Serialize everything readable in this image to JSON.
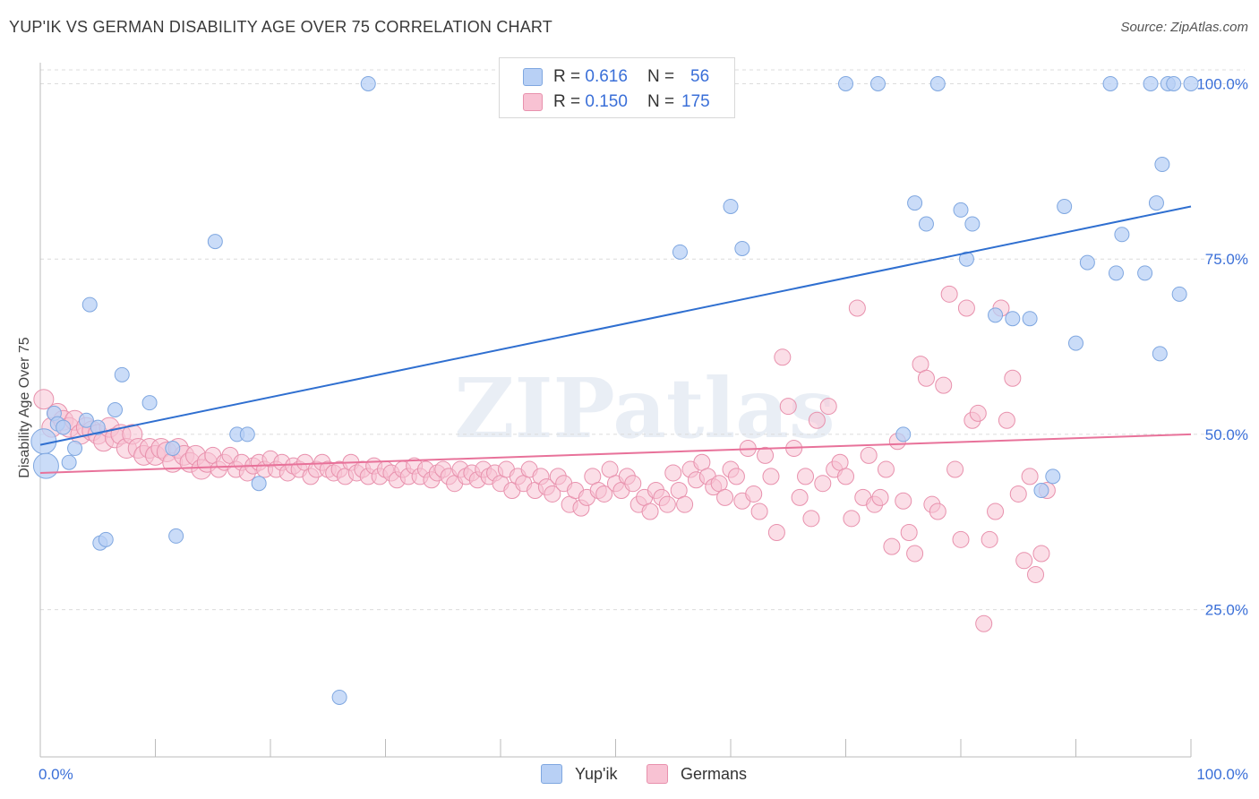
{
  "title": "YUP'IK VS GERMAN DISABILITY AGE OVER 75 CORRELATION CHART",
  "source": "Source: ZipAtlas.com",
  "watermark": "ZIPatlas",
  "legend": {
    "rows": [
      {
        "r_label": "R =",
        "r_value": "0.616",
        "n_label": "N =",
        "n_value": "56"
      },
      {
        "r_label": "R =",
        "r_value": "0.150",
        "n_label": "N =",
        "n_value": "175"
      }
    ]
  },
  "bottom_legend": [
    "Yup'ik",
    "Germans"
  ],
  "colors": {
    "blue_fill": "#b8d0f5",
    "blue_edge": "#7fa7e0",
    "blue_line": "#2f6fd0",
    "pink_fill": "#f8c2d3",
    "pink_edge": "#e891ad",
    "pink_line": "#e8729a",
    "tick_label": "#3a6fd8"
  },
  "chart_data": {
    "type": "scatter",
    "title": "YUP'IK VS GERMAN DISABILITY AGE OVER 75 CORRELATION CHART",
    "xlabel": "",
    "ylabel": "Disability Age Over 75",
    "xlim": [
      0,
      100
    ],
    "ylim": [
      4,
      103
    ],
    "x_tick_labels": [
      "0.0%",
      "100.0%"
    ],
    "y_ticks": [
      25,
      50,
      75,
      100
    ],
    "y_tick_labels": [
      "25.0%",
      "50.0%",
      "75.0%",
      "100.0%"
    ],
    "grid": "dashed horizontal at y ticks",
    "legend_position": "top-center",
    "series": [
      {
        "name": "Yup'ik",
        "R": 0.616,
        "N": 56,
        "trend": {
          "x": [
            0,
            100
          ],
          "y": [
            48.5,
            82.5
          ]
        },
        "points": [
          [
            0.3,
            49
          ],
          [
            0.5,
            45.5
          ],
          [
            1.2,
            53
          ],
          [
            1.5,
            51.5
          ],
          [
            2,
            51
          ],
          [
            2.5,
            46
          ],
          [
            3,
            48
          ],
          [
            4,
            52
          ],
          [
            4.3,
            68.5
          ],
          [
            5,
            51
          ],
          [
            5.2,
            34.5
          ],
          [
            5.7,
            35
          ],
          [
            6.5,
            53.5
          ],
          [
            7.1,
            58.5
          ],
          [
            9.5,
            54.5
          ],
          [
            11.5,
            48
          ],
          [
            11.8,
            35.5
          ],
          [
            15.2,
            77.5
          ],
          [
            17.1,
            50
          ],
          [
            18,
            50
          ],
          [
            19,
            43
          ],
          [
            26,
            12.5
          ],
          [
            28.5,
            100
          ],
          [
            54,
            100
          ],
          [
            55.6,
            76
          ],
          [
            60,
            82.5
          ],
          [
            61,
            76.5
          ],
          [
            70,
            100
          ],
          [
            72.8,
            100
          ],
          [
            75,
            50
          ],
          [
            76,
            83
          ],
          [
            77,
            80
          ],
          [
            78,
            100
          ],
          [
            80,
            82
          ],
          [
            80.5,
            75
          ],
          [
            81,
            80
          ],
          [
            83,
            67
          ],
          [
            84.5,
            66.5
          ],
          [
            86,
            66.5
          ],
          [
            87,
            42
          ],
          [
            88,
            44
          ],
          [
            89,
            82.5
          ],
          [
            90,
            63
          ],
          [
            91,
            74.5
          ],
          [
            93,
            100
          ],
          [
            93.5,
            73
          ],
          [
            94,
            78.5
          ],
          [
            96,
            73
          ],
          [
            96.5,
            100
          ],
          [
            97,
            83
          ],
          [
            97.5,
            88.5
          ],
          [
            97.3,
            61.5
          ],
          [
            98,
            100
          ],
          [
            98.5,
            100
          ],
          [
            99,
            70
          ],
          [
            100,
            100
          ]
        ]
      },
      {
        "name": "Germans",
        "R": 0.15,
        "N": 175,
        "trend": {
          "x": [
            0,
            100
          ],
          "y": [
            44.5,
            50
          ]
        },
        "points": [
          [
            0.3,
            55
          ],
          [
            1,
            51
          ],
          [
            1.5,
            53
          ],
          [
            2,
            52
          ],
          [
            2.5,
            51
          ],
          [
            3,
            52
          ],
          [
            3.5,
            50
          ],
          [
            4,
            51
          ],
          [
            4.5,
            50.5
          ],
          [
            5,
            50
          ],
          [
            5.5,
            49
          ],
          [
            6,
            51
          ],
          [
            6.5,
            49.5
          ],
          [
            7,
            50
          ],
          [
            7.5,
            48
          ],
          [
            8,
            50
          ],
          [
            8.5,
            48
          ],
          [
            9,
            47
          ],
          [
            9.5,
            48
          ],
          [
            10,
            47
          ],
          [
            10.5,
            48
          ],
          [
            11,
            47.5
          ],
          [
            11.5,
            46
          ],
          [
            12,
            48
          ],
          [
            12.5,
            47
          ],
          [
            13,
            46
          ],
          [
            13.5,
            47
          ],
          [
            14,
            45
          ],
          [
            14.5,
            46
          ],
          [
            15,
            47
          ],
          [
            15.5,
            45
          ],
          [
            16,
            46
          ],
          [
            16.5,
            47
          ],
          [
            17,
            45
          ],
          [
            17.5,
            46
          ],
          [
            18,
            44.5
          ],
          [
            18.5,
            45.5
          ],
          [
            19,
            46
          ],
          [
            19.5,
            45
          ],
          [
            20,
            46.5
          ],
          [
            20.5,
            45
          ],
          [
            21,
            46
          ],
          [
            21.5,
            44.5
          ],
          [
            22,
            45.5
          ],
          [
            22.5,
            45
          ],
          [
            23,
            46
          ],
          [
            23.5,
            44
          ],
          [
            24,
            45
          ],
          [
            24.5,
            46
          ],
          [
            25,
            45
          ],
          [
            25.5,
            44.5
          ],
          [
            26,
            45
          ],
          [
            26.5,
            44
          ],
          [
            27,
            46
          ],
          [
            27.5,
            44.5
          ],
          [
            28,
            45
          ],
          [
            28.5,
            44
          ],
          [
            29,
            45.5
          ],
          [
            29.5,
            44
          ],
          [
            30,
            45
          ],
          [
            30.5,
            44.5
          ],
          [
            31,
            43.5
          ],
          [
            31.5,
            45
          ],
          [
            32,
            44
          ],
          [
            32.5,
            45.5
          ],
          [
            33,
            44
          ],
          [
            33.5,
            45
          ],
          [
            34,
            43.5
          ],
          [
            34.5,
            44.5
          ],
          [
            35,
            45
          ],
          [
            35.5,
            44
          ],
          [
            36,
            43
          ],
          [
            36.5,
            45
          ],
          [
            37,
            44
          ],
          [
            37.5,
            44.5
          ],
          [
            38,
            43.5
          ],
          [
            38.5,
            45
          ],
          [
            39,
            44
          ],
          [
            39.5,
            44.5
          ],
          [
            40,
            43
          ],
          [
            40.5,
            45
          ],
          [
            41,
            42
          ],
          [
            41.5,
            44
          ],
          [
            42,
            43
          ],
          [
            42.5,
            45
          ],
          [
            43,
            42
          ],
          [
            43.5,
            44
          ],
          [
            44,
            42.5
          ],
          [
            44.5,
            41.5
          ],
          [
            45,
            44
          ],
          [
            45.5,
            43
          ],
          [
            46,
            40
          ],
          [
            46.5,
            42
          ],
          [
            47,
            39.5
          ],
          [
            47.5,
            41
          ],
          [
            48,
            44
          ],
          [
            48.5,
            42
          ],
          [
            49,
            41.5
          ],
          [
            49.5,
            45
          ],
          [
            50,
            43
          ],
          [
            50.5,
            42
          ],
          [
            51,
            44
          ],
          [
            51.5,
            43
          ],
          [
            52,
            40
          ],
          [
            52.5,
            41
          ],
          [
            53,
            39
          ],
          [
            53.5,
            42
          ],
          [
            54,
            41
          ],
          [
            54.5,
            40
          ],
          [
            55,
            44.5
          ],
          [
            55.5,
            42
          ],
          [
            56,
            40
          ],
          [
            56.5,
            45
          ],
          [
            57,
            43.5
          ],
          [
            57.5,
            46
          ],
          [
            58,
            44
          ],
          [
            58.5,
            42.5
          ],
          [
            59,
            43
          ],
          [
            59.5,
            41
          ],
          [
            60,
            45
          ],
          [
            60.5,
            44
          ],
          [
            61,
            40.5
          ],
          [
            61.5,
            48
          ],
          [
            62,
            41.5
          ],
          [
            62.5,
            39
          ],
          [
            63,
            47
          ],
          [
            63.5,
            44
          ],
          [
            64,
            36
          ],
          [
            64.5,
            61
          ],
          [
            65,
            54
          ],
          [
            65.5,
            48
          ],
          [
            66,
            41
          ],
          [
            66.5,
            44
          ],
          [
            67,
            38
          ],
          [
            67.5,
            52
          ],
          [
            68,
            43
          ],
          [
            68.5,
            54
          ],
          [
            69,
            45
          ],
          [
            69.5,
            46
          ],
          [
            70,
            44
          ],
          [
            70.5,
            38
          ],
          [
            71,
            68
          ],
          [
            71.5,
            41
          ],
          [
            72,
            47
          ],
          [
            72.5,
            40
          ],
          [
            73,
            41
          ],
          [
            73.5,
            45
          ],
          [
            74,
            34
          ],
          [
            74.5,
            49
          ],
          [
            75,
            40.5
          ],
          [
            75.5,
            36
          ],
          [
            76,
            33
          ],
          [
            76.5,
            60
          ],
          [
            77,
            58
          ],
          [
            77.5,
            40
          ],
          [
            78,
            39
          ],
          [
            78.5,
            57
          ],
          [
            79,
            70
          ],
          [
            79.5,
            45
          ],
          [
            80,
            35
          ],
          [
            80.5,
            68
          ],
          [
            81,
            52
          ],
          [
            81.5,
            53
          ],
          [
            82,
            23
          ],
          [
            82.5,
            35
          ],
          [
            83,
            39
          ],
          [
            83.5,
            68
          ],
          [
            84,
            52
          ],
          [
            84.5,
            58
          ],
          [
            85,
            41.5
          ],
          [
            85.5,
            32
          ],
          [
            86,
            44
          ],
          [
            86.5,
            30
          ],
          [
            87,
            33
          ],
          [
            87.5,
            42
          ]
        ]
      }
    ]
  }
}
